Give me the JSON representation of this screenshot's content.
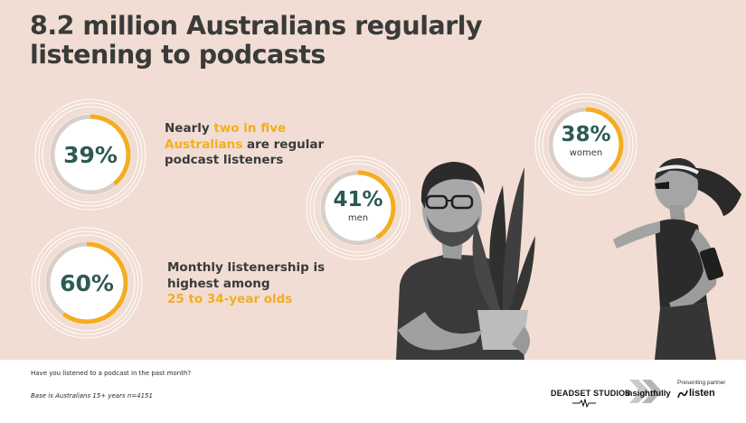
{
  "title": {
    "line1": "8.2 million Australians regularly",
    "line2": "listening to podcasts"
  },
  "stats": {
    "regular": {
      "value": "39%",
      "fraction": 0.39,
      "text_line1_pre": "Nearly ",
      "text_line1_hl": "two in five",
      "text_line2_hl": "Australians",
      "text_line2_post": " are regular",
      "text_line3": "podcast listeners"
    },
    "monthly": {
      "value": "60%",
      "fraction": 0.6,
      "text_line1": "Monthly listenership is",
      "text_line2": "highest among",
      "text_line3_hl": "25 to 34-year olds"
    },
    "men": {
      "value": "41%",
      "fraction": 0.41,
      "label": "men"
    },
    "women": {
      "value": "38%",
      "fraction": 0.38,
      "label": "women"
    }
  },
  "footer": {
    "question": "Have you listened to a podcast in the past month?",
    "base": "Base is Australians 15+ years n=4151"
  },
  "logos": {
    "deadset": "DEADSET STUDIOS",
    "insightfully": "Insightfully",
    "presenting": "Presenting partner",
    "listen": "listen"
  },
  "colors": {
    "background": "#f1ddd3",
    "accent": "#f4ad1f",
    "percent": "#2d5a52",
    "text": "#3a3a3a"
  }
}
